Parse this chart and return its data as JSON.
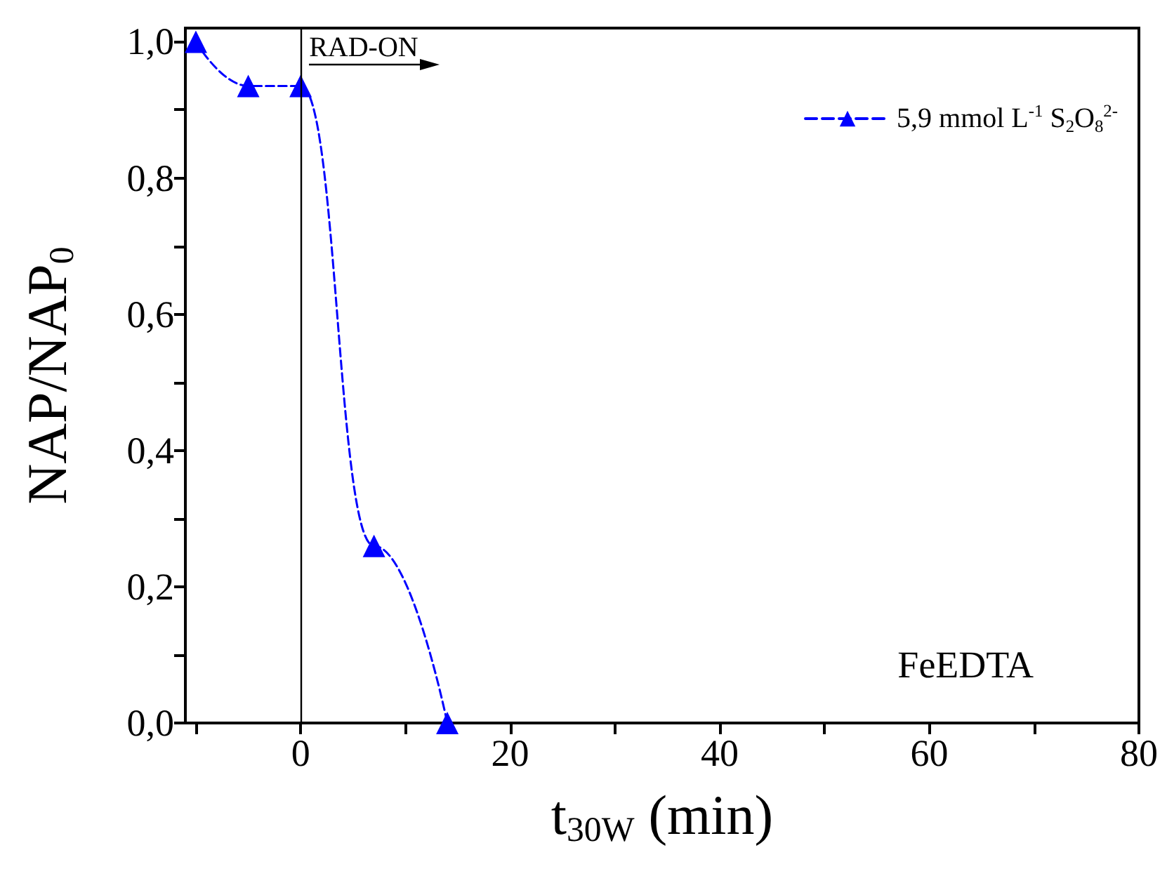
{
  "chart_data": {
    "type": "line",
    "xlabel": "t$_{30W}$ (min)",
    "ylabel": "NAP/NAP$_{0}$",
    "x": [
      -10,
      -5,
      0,
      7,
      14
    ],
    "series": [
      {
        "name": "5,9 mmol L$^{-1}$ S$_{2}$O$_{8}$$^{2-}$",
        "color": "#0000ff",
        "values": [
          1.0,
          0.935,
          0.935,
          0.26,
          0.0
        ]
      }
    ],
    "xlim": [
      -11,
      80
    ],
    "xticks": [
      {
        "value": -10,
        "label": null
      },
      0,
      {
        "value": 10,
        "label": null
      },
      20,
      {
        "value": 30,
        "label": null
      },
      40,
      {
        "value": 50,
        "label": null
      },
      60,
      {
        "value": 70,
        "label": null
      },
      80
    ],
    "ylim": [
      0,
      1.02
    ],
    "yticks": [
      {
        "value": 0,
        "label": "0,0"
      },
      {
        "value": 0.1,
        "label": null
      },
      {
        "value": 0.2,
        "label": "0,2"
      },
      {
        "value": 0.3,
        "label": null
      },
      {
        "value": 0.4,
        "label": "0,4"
      },
      {
        "value": 0.5,
        "label": null
      },
      {
        "value": 0.6,
        "label": "0,6"
      },
      {
        "value": 0.7,
        "label": null
      },
      {
        "value": 0.8,
        "label": "0,8"
      },
      {
        "value": 0.9,
        "label": null
      },
      {
        "value": 1.0,
        "label": "1,0"
      }
    ],
    "ref_lines": [
      {
        "axis": "x",
        "value": 0,
        "label": "RAD-ON",
        "color": "#000000"
      }
    ],
    "annotations": [
      "FeEDTA"
    ],
    "marker": "triangle",
    "line_style": "dashed",
    "legend": "top right",
    "grid": false
  }
}
